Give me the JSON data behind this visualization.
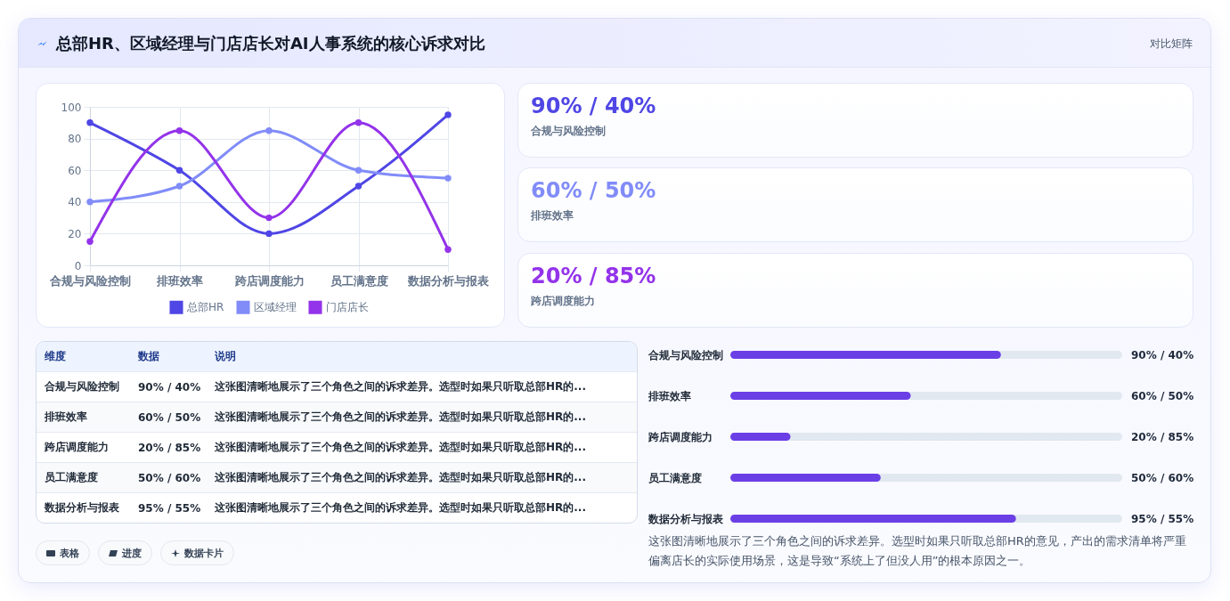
{
  "chart_data": [
    {
      "type": "line",
      "title": "总部HR、区域经理与门店店长对AI人事系统的核心诉求对比",
      "categories": [
        "合规与风险控制",
        "排班效率",
        "跨店调度能力",
        "员工满意度",
        "数据分析与报表"
      ],
      "series": [
        {
          "name": "总部HR",
          "color": "#4f46e5",
          "values": [
            90,
            60,
            20,
            50,
            95
          ]
        },
        {
          "name": "区域经理",
          "color": "#818cf8",
          "values": [
            40,
            50,
            85,
            60,
            55
          ]
        },
        {
          "name": "门店店长",
          "color": "#9333ea",
          "values": [
            15,
            85,
            30,
            90,
            10
          ]
        }
      ],
      "ylim": [
        0,
        100
      ],
      "yticks": [
        0,
        20,
        40,
        60,
        80,
        100
      ],
      "grid": true,
      "legend": "bottom",
      "marker": "circle"
    },
    {
      "type": "other",
      "title": "对比矩阵",
      "categories": [
        "合规与风险控制",
        "排班效率",
        "跨店调度能力"
      ],
      "value_labels": [
        "90% / 40%",
        "60% / 50%",
        "20% / 85%"
      ]
    },
    {
      "type": "other",
      "ylabel": "维度",
      "categories": [
        "数据",
        "说明"
      ],
      "y_categories": [
        "合规与风险控制",
        "排班效率",
        "跨店调度能力",
        "员工满意度",
        "数据分析与报表"
      ],
      "cell_labels": [
        [
          "90% / 40%",
          "这张图清晰地展示了三个角色之间的诉求差异。选型时如果只听取总部HR的..."
        ],
        [
          "60% / 50%",
          "这张图清晰地展示了三个角色之间的诉求差异。选型时如果只听取总部HR的..."
        ],
        [
          "20% / 85%",
          "这张图清晰地展示了三个角色之间的诉求差异。选型时如果只听取总部HR的..."
        ],
        [
          "50% / 60%",
          "这张图清晰地展示了三个角色之间的诉求差异。选型时如果只听取总部HR的..."
        ],
        [
          "95% / 55%",
          "这张图清晰地展示了三个角色之间的诉求差异。选型时如果只听取总部HR的..."
        ]
      ],
      "annotations": [
        "表格",
        "进度",
        "数据卡片"
      ]
    },
    {
      "type": "bar",
      "orientation": "horizontal",
      "categories": [
        "合规与风险控制",
        "排班效率",
        "跨店调度能力",
        "员工满意度",
        "数据分析与报表"
      ],
      "values": [
        90,
        60,
        20,
        50,
        95
      ],
      "value_labels": [
        "90% / 40%",
        "60% / 50%",
        "20% / 85%",
        "50% / 60%",
        "95% / 55%"
      ],
      "color": "#6b3fe6",
      "annotations": [
        "这张图清晰地展示了三个角色之间的诉求差异。选型时如果只听取总部HR的意见，产出的需求清单将严重偏离店长的实际使用场景，这是导致“系统上了但没人用”的根本原因之一。"
      ]
    }
  ]
}
